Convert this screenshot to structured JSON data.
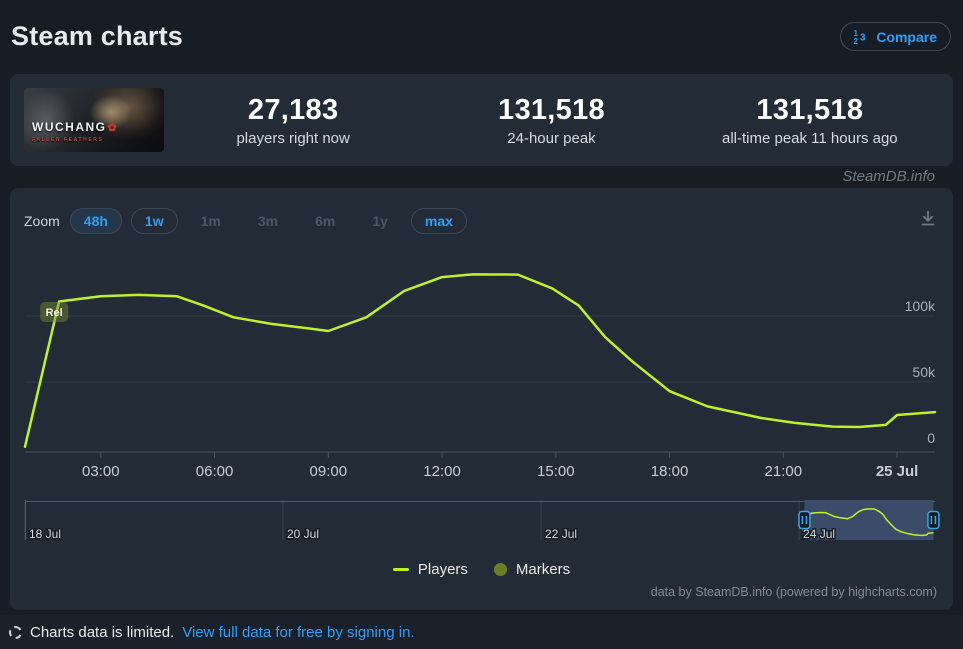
{
  "header": {
    "title": "Steam charts",
    "compare_label": "Compare"
  },
  "stats": {
    "game_title": "WUCHANG",
    "game_accent": "✿",
    "game_subtitle": "FALLEN FEATHERS",
    "items": [
      {
        "value": "27,183",
        "label": "players right now"
      },
      {
        "value": "131,518",
        "label": "24-hour peak"
      },
      {
        "value": "131,518",
        "label": "all-time peak 11 hours ago"
      }
    ]
  },
  "watermark": "SteamDB.info",
  "toolbar": {
    "zoom_label": "Zoom",
    "buttons": [
      {
        "label": "48h",
        "state": "active"
      },
      {
        "label": "1w",
        "state": "enabled"
      },
      {
        "label": "1m",
        "state": "disabled"
      },
      {
        "label": "3m",
        "state": "disabled"
      },
      {
        "label": "6m",
        "state": "disabled"
      },
      {
        "label": "1y",
        "state": "disabled"
      },
      {
        "label": "max",
        "state": "enabled"
      }
    ]
  },
  "chart_data": {
    "type": "line",
    "title": "",
    "xlabel": "",
    "ylabel": "",
    "x_unit": "hours since 24 Jul 01:00",
    "x_range": [
      0,
      24
    ],
    "y_range": [
      0,
      140000
    ],
    "grid": "horizontal",
    "legend_position": "bottom",
    "series": [
      {
        "name": "Players",
        "color": "#bdf12d",
        "points": [
          [
            0,
            1000
          ],
          [
            0.9,
            111000
          ],
          [
            2,
            115000
          ],
          [
            3,
            116000
          ],
          [
            4,
            115000
          ],
          [
            4.7,
            108000
          ],
          [
            5.5,
            99000
          ],
          [
            6.5,
            94000
          ],
          [
            7.5,
            90500
          ],
          [
            8,
            88600
          ],
          [
            9,
            99000
          ],
          [
            10,
            119000
          ],
          [
            11,
            129500
          ],
          [
            11.8,
            131518
          ],
          [
            13,
            131400
          ],
          [
            13.9,
            121000
          ],
          [
            14.6,
            108000
          ],
          [
            15.3,
            84000
          ],
          [
            16,
            66000
          ],
          [
            17,
            43000
          ],
          [
            18,
            31500
          ],
          [
            19.4,
            22800
          ],
          [
            20.3,
            19000
          ],
          [
            21.3,
            16200
          ],
          [
            22,
            15900
          ],
          [
            22.7,
            17500
          ],
          [
            23,
            25000
          ],
          [
            24,
            27183
          ]
        ]
      }
    ],
    "release_marker": {
      "label": "Rel",
      "x": 0.77,
      "y": 103000
    },
    "y_ticks": [
      {
        "value": 0,
        "label": "0"
      },
      {
        "value": 50000,
        "label": "50k"
      },
      {
        "value": 100000,
        "label": "100k"
      }
    ],
    "x_ticks": [
      {
        "x": 2,
        "label": "03:00"
      },
      {
        "x": 5,
        "label": "06:00"
      },
      {
        "x": 8,
        "label": "09:00"
      },
      {
        "x": 11,
        "label": "12:00"
      },
      {
        "x": 14,
        "label": "15:00"
      },
      {
        "x": 17,
        "label": "18:00"
      },
      {
        "x": 20,
        "label": "21:00"
      },
      {
        "x": 23,
        "label": "25 Jul",
        "bold": true
      }
    ],
    "navigator": {
      "date_labels": [
        {
          "label": "18 Jul",
          "day": 0
        },
        {
          "label": "20 Jul",
          "day": 2
        },
        {
          "label": "22 Jul",
          "day": 4
        },
        {
          "label": "24 Jul",
          "day": 6
        }
      ],
      "total_days": 7.054,
      "selection_days": [
        6.042,
        7.042
      ],
      "selection_color": "#6482bf"
    }
  },
  "legend": {
    "items": [
      {
        "label": "Players",
        "swatch": "line",
        "color": "#bdf12d"
      },
      {
        "label": "Markers",
        "swatch": "circle",
        "color": "#6c7c27"
      }
    ]
  },
  "credit": "data by SteamDB.info (powered by highcharts.com)",
  "footer": {
    "notice": "Charts data is limited.",
    "link": "View full data for free by signing in."
  }
}
